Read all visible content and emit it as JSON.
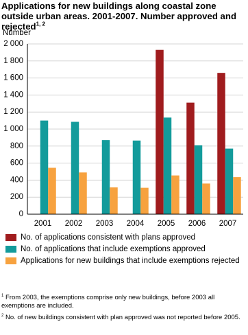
{
  "chart_data": {
    "type": "bar",
    "title": "Applications for new buildings along coastal zone outside urban areas. 2001-2007. Number approved and rejected",
    "title_superscript": "1, 2",
    "y_label": "Number",
    "categories": [
      "2001",
      "2002",
      "2003",
      "2004",
      "2005",
      "2006",
      "2007"
    ],
    "series": [
      {
        "name": "No. of applications consistent with plans approved",
        "color": "#a01c1e",
        "values": [
          null,
          null,
          null,
          null,
          1930,
          1310,
          1660
        ]
      },
      {
        "name": "No. of applications that include exemptions approved",
        "color": "#139b9b",
        "values": [
          1100,
          1085,
          870,
          865,
          1135,
          810,
          770
        ]
      },
      {
        "name": "Applications for new buildings that include exemptions rejected",
        "color": "#f7a23f",
        "values": [
          545,
          490,
          315,
          310,
          455,
          360,
          435
        ]
      }
    ],
    "ylim": [
      0,
      2000
    ],
    "yticks": [
      0,
      200,
      400,
      600,
      800,
      {
        "value": 1000,
        "label": "1 000"
      },
      {
        "value": 1200,
        "label": "1 200"
      },
      {
        "value": 1400,
        "label": "1 400"
      },
      {
        "value": 1600,
        "label": "1 600"
      },
      {
        "value": 1800,
        "label": "1 800"
      },
      {
        "value": 2000,
        "label": "2 000"
      }
    ],
    "grid": true,
    "legend": "bottom",
    "footnotes": [
      {
        "marker": "1",
        "text": "From 2003, the exemptions comprise only new buildings, before 2003 all exemptions are included."
      },
      {
        "marker": "2",
        "text": "No. of new buildings consistent with plan approved was not reported before 2005."
      }
    ]
  }
}
